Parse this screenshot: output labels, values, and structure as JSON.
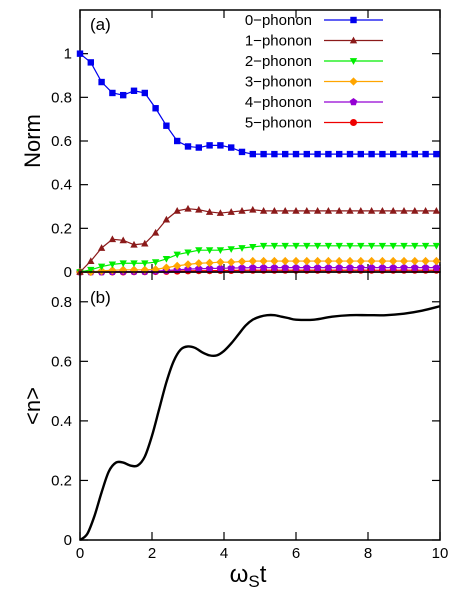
{
  "chart_data": [
    {
      "type": "line",
      "panel_label": "(a)",
      "ylabel": "Norm",
      "xlim": [
        0,
        10
      ],
      "ylim": [
        0,
        1.2
      ],
      "yticks": [
        "0",
        "0.2",
        "0.4",
        "0.6",
        "0.8",
        "1"
      ],
      "ytick_values": [
        0,
        0.2,
        0.4,
        0.6,
        0.8,
        1.0
      ],
      "legend_position": "top-right",
      "x": [
        0,
        0.3,
        0.6,
        0.9,
        1.2,
        1.5,
        1.8,
        2.1,
        2.4,
        2.7,
        3.0,
        3.3,
        3.6,
        3.9,
        4.2,
        4.5,
        4.8,
        5.1,
        5.4,
        5.7,
        6.0,
        6.3,
        6.6,
        6.9,
        7.2,
        7.5,
        7.8,
        8.1,
        8.4,
        8.7,
        9.0,
        9.3,
        9.6,
        9.9
      ],
      "series": [
        {
          "name": "0−phonon",
          "color": "#0000ee",
          "marker": "square",
          "values": [
            1.0,
            0.96,
            0.87,
            0.82,
            0.81,
            0.83,
            0.82,
            0.75,
            0.67,
            0.6,
            0.575,
            0.57,
            0.58,
            0.58,
            0.57,
            0.55,
            0.54,
            0.54,
            0.54,
            0.54,
            0.54,
            0.54,
            0.54,
            0.54,
            0.54,
            0.54,
            0.54,
            0.54,
            0.54,
            0.54,
            0.54,
            0.54,
            0.54,
            0.54
          ]
        },
        {
          "name": "1−phonon",
          "color": "#8b1a1a",
          "marker": "triangle",
          "values": [
            0.0,
            0.05,
            0.11,
            0.15,
            0.145,
            0.125,
            0.13,
            0.18,
            0.24,
            0.28,
            0.29,
            0.285,
            0.275,
            0.27,
            0.275,
            0.28,
            0.285,
            0.28,
            0.28,
            0.28,
            0.28,
            0.28,
            0.28,
            0.28,
            0.28,
            0.28,
            0.28,
            0.28,
            0.28,
            0.28,
            0.28,
            0.28,
            0.28,
            0.28
          ]
        },
        {
          "name": "2−phonon",
          "color": "#00ee00",
          "marker": "triangle-down",
          "values": [
            0.0,
            0.01,
            0.025,
            0.035,
            0.04,
            0.04,
            0.04,
            0.045,
            0.06,
            0.08,
            0.09,
            0.1,
            0.1,
            0.1,
            0.105,
            0.11,
            0.115,
            0.12,
            0.12,
            0.12,
            0.12,
            0.12,
            0.12,
            0.12,
            0.12,
            0.12,
            0.12,
            0.12,
            0.12,
            0.12,
            0.12,
            0.12,
            0.12,
            0.12
          ]
        },
        {
          "name": "3−phonon",
          "color": "#ffa500",
          "marker": "diamond",
          "values": [
            0.0,
            0.0,
            0.005,
            0.008,
            0.01,
            0.01,
            0.01,
            0.012,
            0.02,
            0.028,
            0.035,
            0.04,
            0.042,
            0.045,
            0.045,
            0.048,
            0.05,
            0.05,
            0.05,
            0.05,
            0.05,
            0.05,
            0.05,
            0.05,
            0.05,
            0.05,
            0.05,
            0.05,
            0.05,
            0.05,
            0.05,
            0.05,
            0.05,
            0.05
          ]
        },
        {
          "name": "4−phonon",
          "color": "#9400d3",
          "marker": "pentagon",
          "values": [
            0.0,
            0.0,
            0.0,
            0.001,
            0.002,
            0.002,
            0.002,
            0.004,
            0.007,
            0.01,
            0.013,
            0.015,
            0.016,
            0.017,
            0.018,
            0.019,
            0.02,
            0.02,
            0.02,
            0.02,
            0.02,
            0.02,
            0.02,
            0.02,
            0.02,
            0.02,
            0.02,
            0.02,
            0.02,
            0.02,
            0.02,
            0.02,
            0.02,
            0.02
          ]
        },
        {
          "name": "5−phonon",
          "color": "#ee0000",
          "marker": "circle",
          "values": [
            0.0,
            0.0,
            0.0,
            0.0,
            0.0,
            0.001,
            0.001,
            0.002,
            0.003,
            0.004,
            0.005,
            0.006,
            0.006,
            0.007,
            0.007,
            0.008,
            0.008,
            0.008,
            0.008,
            0.008,
            0.008,
            0.008,
            0.008,
            0.008,
            0.008,
            0.008,
            0.008,
            0.008,
            0.008,
            0.008,
            0.008,
            0.008,
            0.008,
            0.008
          ]
        }
      ]
    },
    {
      "type": "line",
      "panel_label": "(b)",
      "ylabel": "<n>",
      "xlabel_main": "ω",
      "xlabel_sub": "S",
      "xlabel_tail": "t",
      "xlim": [
        0,
        10
      ],
      "ylim": [
        0,
        0.9
      ],
      "xticks": [
        "0",
        "2",
        "4",
        "6",
        "8",
        "10"
      ],
      "xtick_values": [
        0,
        2,
        4,
        6,
        8,
        10
      ],
      "yticks": [
        "0",
        "0.2",
        "0.4",
        "0.6",
        "0.8"
      ],
      "ytick_values": [
        0,
        0.2,
        0.4,
        0.6,
        0.8
      ],
      "series": [
        {
          "name": "",
          "color": "#000000",
          "x": [
            0,
            0.2,
            0.4,
            0.6,
            0.8,
            1.0,
            1.2,
            1.4,
            1.6,
            1.8,
            2.0,
            2.2,
            2.4,
            2.6,
            2.8,
            3.0,
            3.2,
            3.4,
            3.6,
            3.8,
            4.0,
            4.2,
            4.4,
            4.6,
            4.8,
            5.0,
            5.2,
            5.4,
            5.6,
            5.8,
            6.0,
            6.5,
            7.0,
            7.5,
            8.0,
            8.5,
            9.0,
            9.5,
            10.0
          ],
          "values": [
            0.0,
            0.02,
            0.08,
            0.16,
            0.23,
            0.26,
            0.26,
            0.25,
            0.25,
            0.28,
            0.35,
            0.44,
            0.53,
            0.6,
            0.64,
            0.65,
            0.645,
            0.63,
            0.62,
            0.62,
            0.635,
            0.66,
            0.69,
            0.72,
            0.74,
            0.75,
            0.755,
            0.755,
            0.75,
            0.745,
            0.74,
            0.74,
            0.75,
            0.755,
            0.755,
            0.755,
            0.76,
            0.77,
            0.785
          ]
        }
      ]
    }
  ]
}
